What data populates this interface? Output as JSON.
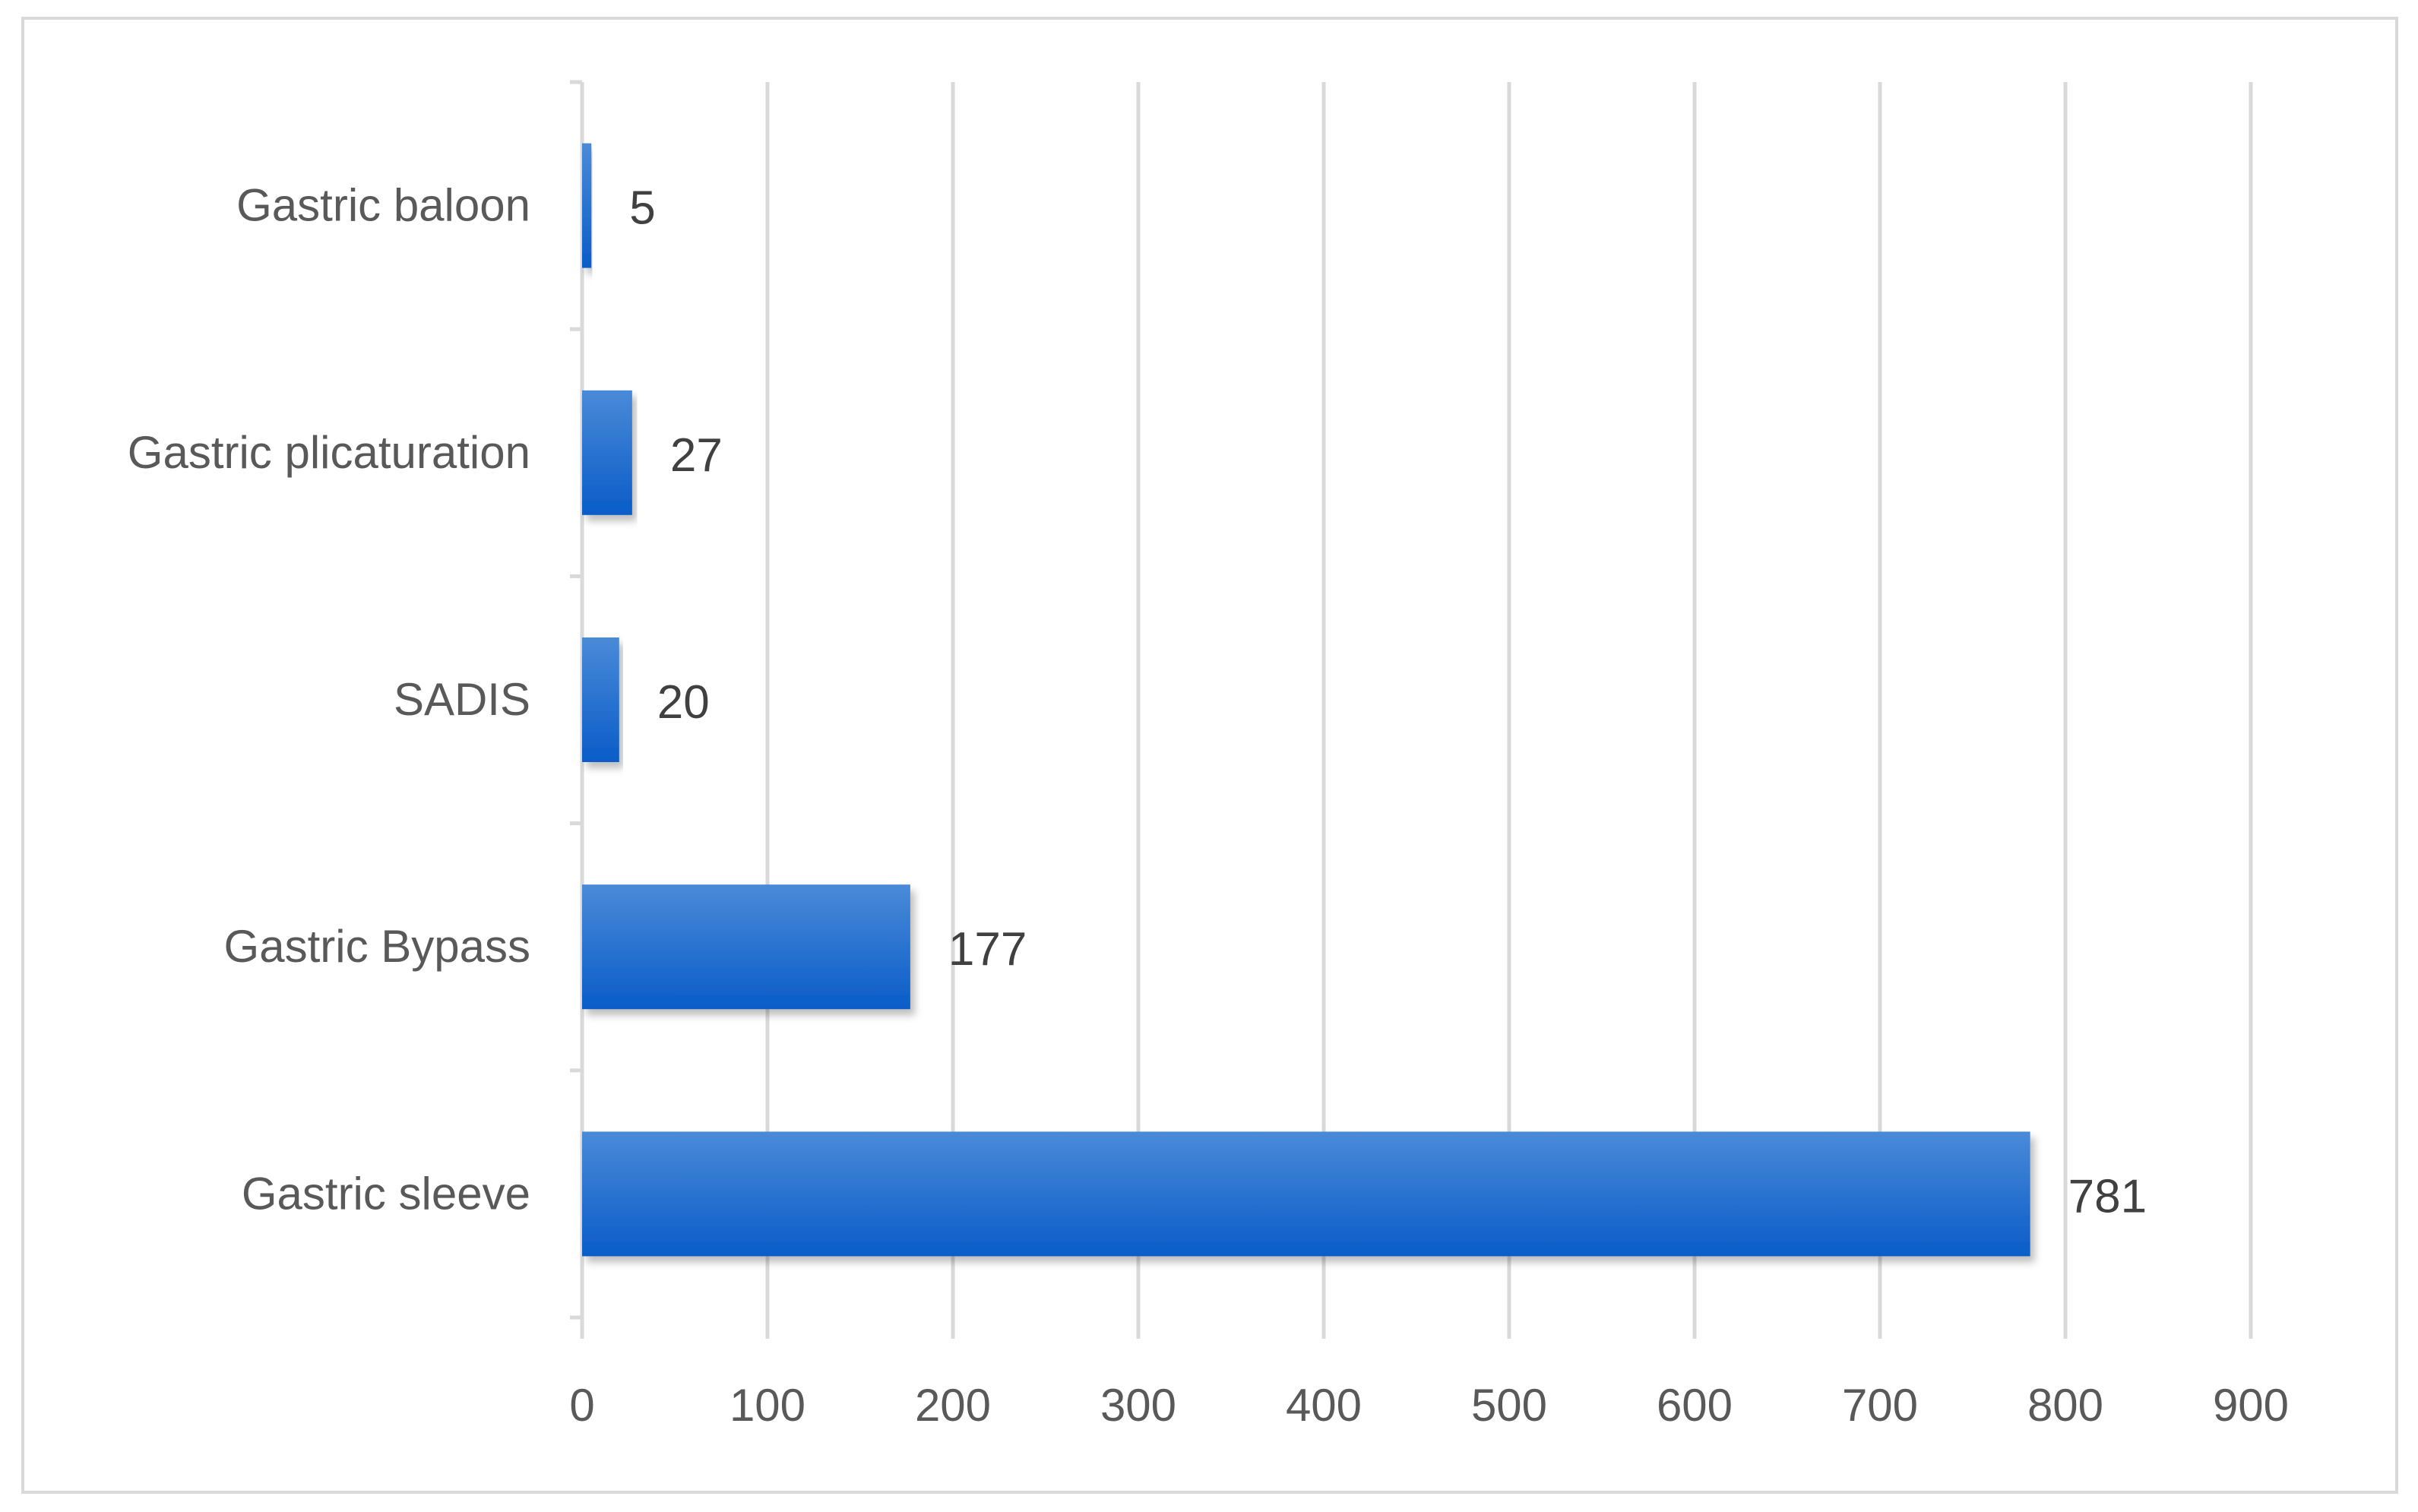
{
  "chart_data": {
    "type": "bar",
    "orientation": "horizontal",
    "title": "",
    "xlabel": "",
    "ylabel": "",
    "categories": [
      "Gastric baloon",
      "Gastric plicaturation",
      "SADIS",
      "Gastric Bypass",
      "Gastric sleeve"
    ],
    "values": [
      5,
      27,
      20,
      177,
      781
    ],
    "data_labels": [
      "5",
      "27",
      "20",
      "177",
      "781"
    ],
    "xlim": [
      0,
      900
    ],
    "x_ticks": [
      0,
      100,
      200,
      300,
      400,
      500,
      600,
      700,
      800,
      900
    ],
    "x_tick_labels": [
      "0",
      "100",
      "200",
      "300",
      "400",
      "500",
      "600",
      "700",
      "800",
      "900"
    ],
    "grid": true,
    "legend": "none",
    "colors": {
      "bar_top": "#4a8ad8",
      "bar_bottom": "#0a5cc8",
      "grid": "#d9d9d9",
      "axis": "#d9d9d9",
      "text": "#595959",
      "frame": "#d9d9d9"
    }
  }
}
